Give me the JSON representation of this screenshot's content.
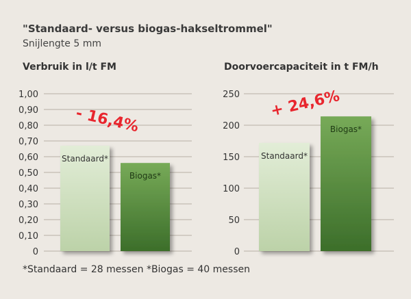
{
  "title": "\"Standaard- versus biogas-hakseltrommel\"",
  "subtitle": "Snijlengte 5 mm",
  "footnote": "*Standaard = 28 messen   *Biogas = 40 messen",
  "colors": {
    "background": "#ede9e3",
    "standaard_top": "#e2edd7",
    "standaard_bottom": "#bcd2a8",
    "biogas_top": "#77aa58",
    "biogas_bottom": "#3c6e2a",
    "annotation": "#e8262e"
  },
  "chart_data": [
    {
      "type": "bar",
      "title": "Verbruik in l/t FM",
      "categories": [
        "Standaard*",
        "Biogas*"
      ],
      "values": [
        0.67,
        0.56
      ],
      "ylim": [
        0,
        1.0
      ],
      "yticks": [
        "0",
        "0,10",
        "0,20",
        "0,30",
        "0,40",
        "0,50",
        "0,60",
        "0,70",
        "0,80",
        "0,90",
        "1,00"
      ],
      "annotation": "- 16,4%",
      "grid": true
    },
    {
      "type": "bar",
      "title": "Doorvoercapaciteit in t FM/h",
      "categories": [
        "Standaard*",
        "Biogas*"
      ],
      "values": [
        172,
        214
      ],
      "ylim": [
        0,
        250
      ],
      "yticks": [
        "0",
        "50",
        "100",
        "150",
        "200",
        "250"
      ],
      "annotation": "+ 24,6%",
      "grid": true
    }
  ]
}
